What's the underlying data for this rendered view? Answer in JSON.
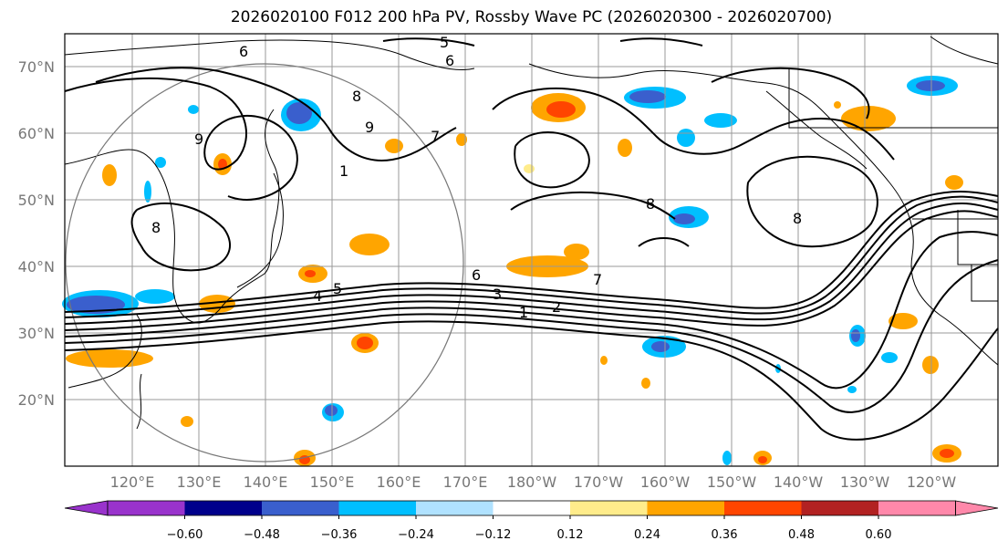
{
  "title": "2026020100 F012 200 hPa PV, Rossby Wave PC (2026020300 - 2026020700)",
  "lat_labels": [
    "70°N",
    "60°N",
    "50°N",
    "40°N",
    "30°N",
    "20°N"
  ],
  "lon_labels": [
    "120°E",
    "130°E",
    "140°E",
    "150°E",
    "160°E",
    "170°E",
    "180°W",
    "170°W",
    "160°W",
    "150°W",
    "140°W",
    "130°W",
    "120°W"
  ],
  "colorbar": {
    "ticks": [
      "−0.60",
      "−0.48",
      "−0.36",
      "−0.24",
      "−0.12",
      "0.12",
      "0.24",
      "0.36",
      "0.48",
      "0.60"
    ],
    "colors": [
      "#9933cc",
      "#00008b",
      "#3a5fcd",
      "#00bfff",
      "#b0e2ff",
      "#ffffff",
      "#ffec8b",
      "#ffa500",
      "#ff4500",
      "#b22222",
      "#ff88aa"
    ]
  },
  "contour_labels": [
    "1",
    "2",
    "3",
    "4",
    "5",
    "6",
    "7",
    "8",
    "8",
    "8",
    "8",
    "9",
    "9",
    "5",
    "6",
    "6",
    "7",
    "1"
  ],
  "colors": {
    "positive": "#ffa500",
    "positive_strong": "#ff4500",
    "negative": "#00bfff",
    "negative_strong": "#3a5fcd"
  }
}
